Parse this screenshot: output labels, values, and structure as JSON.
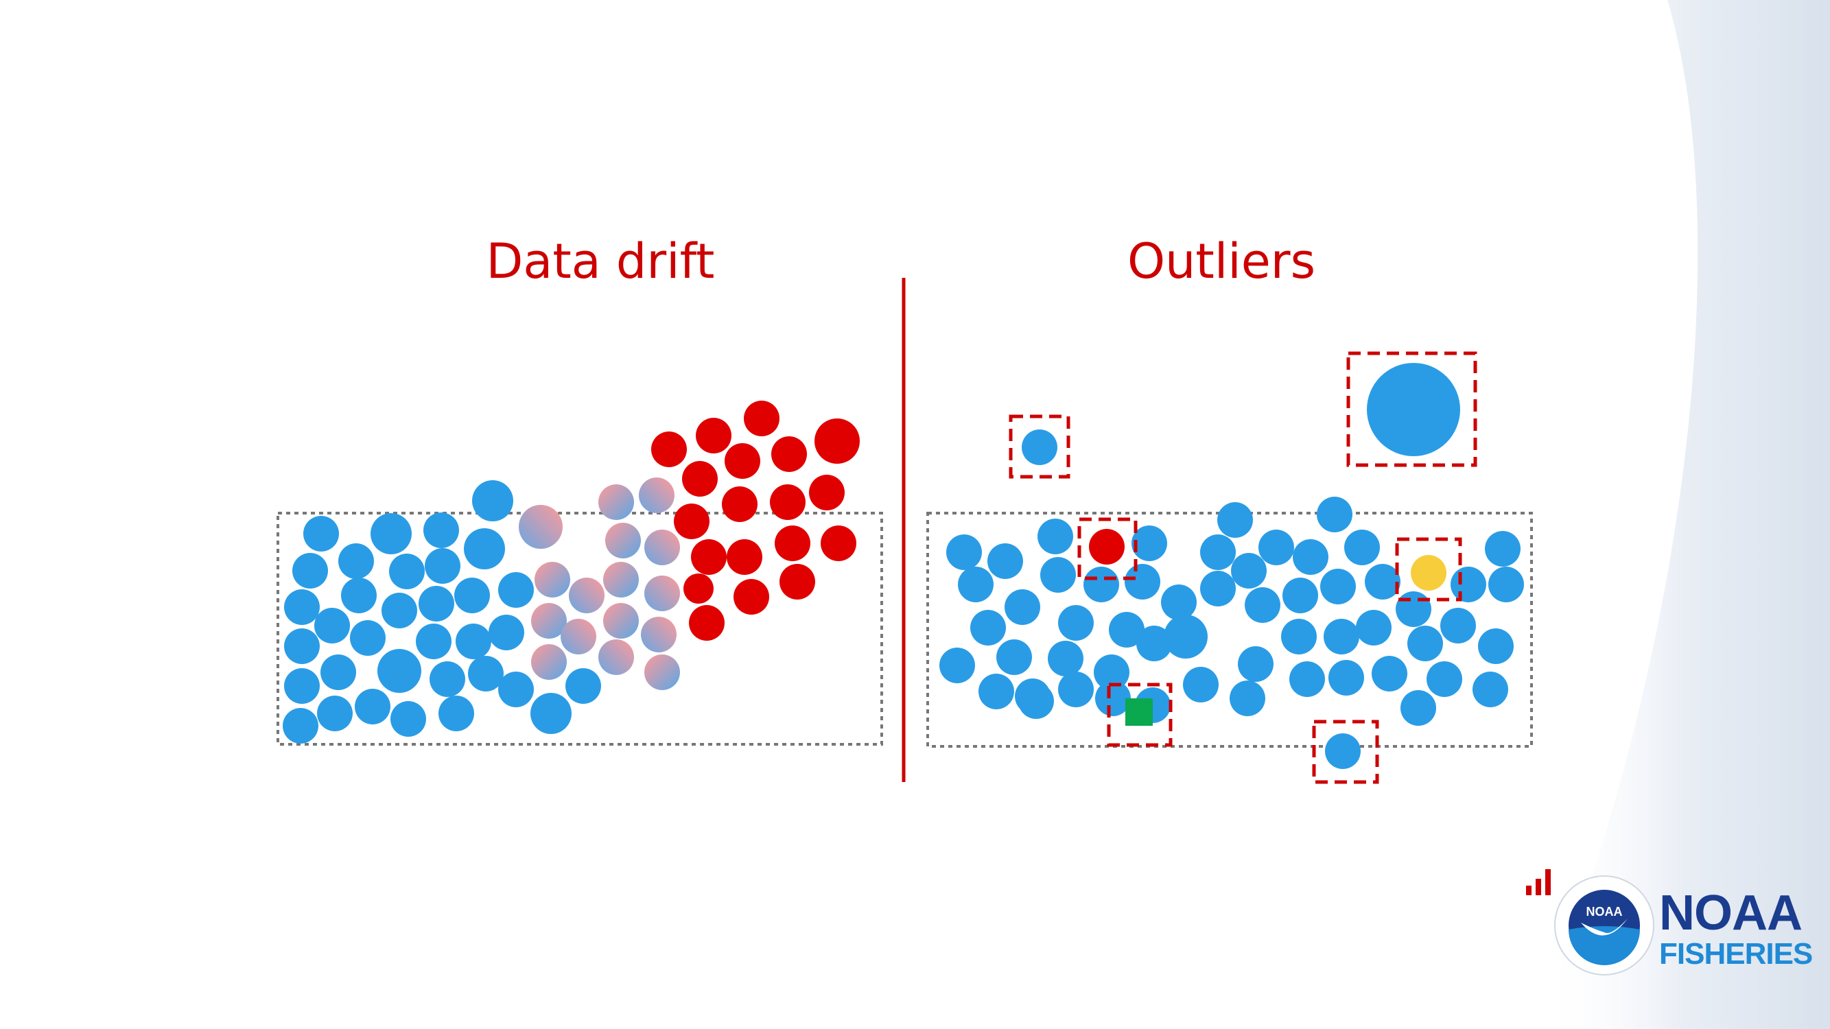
{
  "titles": {
    "left": "Data drift",
    "right": "Outliers"
  },
  "brand": {
    "name_line1": "NOAA",
    "name_line2": "FISHERIES",
    "seal_text": "NOAA"
  },
  "colors": {
    "title_red": "#cc0000",
    "point_blue": "#2a9ce6",
    "drift_red": "#e00000",
    "drift_pink": "#ff9a9a",
    "outlier_yellow": "#f8cd3b",
    "outlier_green": "#0aa84f",
    "divider_red": "#cc0000",
    "box_gray": "#777777",
    "noaa_navy": "#1b3d8f",
    "fisheries_blue": "#1f8ad6"
  },
  "icons": [
    "signal-bars-icon",
    "noaa-seal-icon"
  ]
}
